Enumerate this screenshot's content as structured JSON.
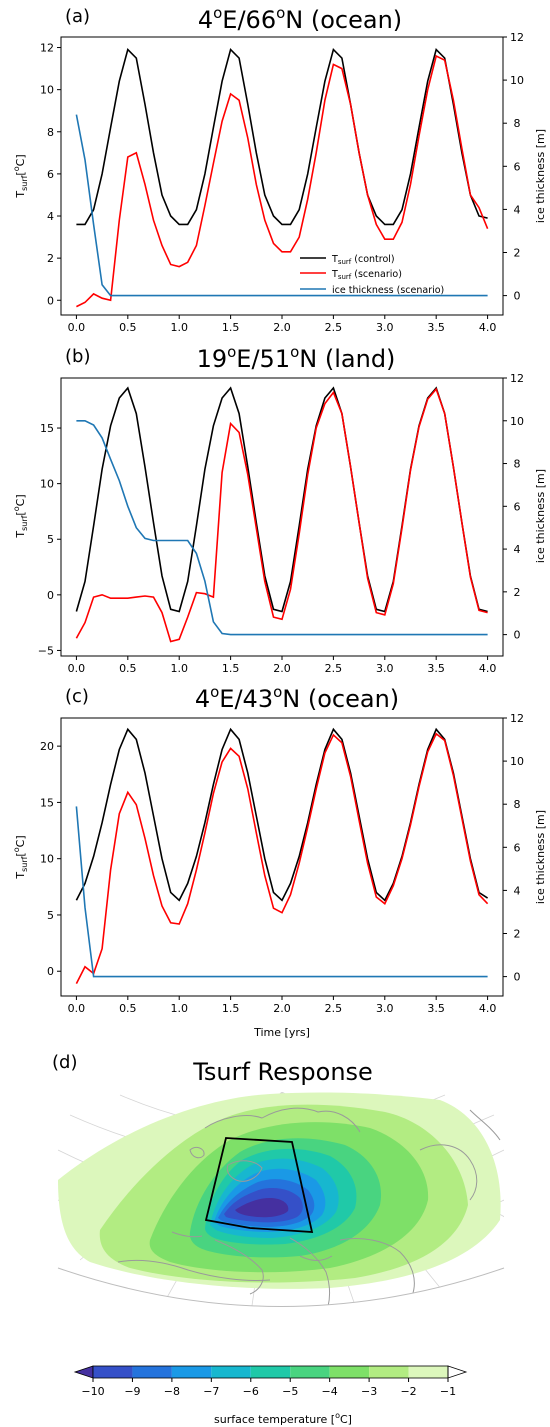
{
  "figure": {
    "title_d": "Tsurf Response"
  },
  "colors": {
    "control": "#000000",
    "scenario": "#ff0000",
    "ice": "#1f77b4"
  },
  "chart_data": [
    {
      "type": "line",
      "panel": "(a)",
      "title_main": "4",
      "title_sup1": "o",
      "title_mid": "E/66",
      "title_sup2": "o",
      "title_end": "N (ocean)",
      "xlabel": "",
      "ylabel_main": "T",
      "ylabel_sub": "surf",
      "ylabel_end": "[",
      "ylabel_sup": "o",
      "ylabel_close": "C]",
      "ylabel_right": "ice thickness [m]",
      "xlim": [
        -0.15,
        4.15
      ],
      "ylim": [
        -0.7,
        12.5
      ],
      "y2lim": [
        -0.9,
        12.0
      ],
      "xticks": [
        0.0,
        0.5,
        1.0,
        1.5,
        2.0,
        2.5,
        3.0,
        3.5,
        4.0
      ],
      "xtick_labels": [
        "0.0",
        "0.5",
        "1.0",
        "1.5",
        "2.0",
        "2.5",
        "3.0",
        "3.5",
        "4.0"
      ],
      "yticks": [
        0,
        2,
        4,
        6,
        8,
        10,
        12
      ],
      "ytick_labels": [
        "0",
        "2",
        "4",
        "6",
        "8",
        "10",
        "12"
      ],
      "y2ticks": [
        0,
        2,
        4,
        6,
        8,
        10,
        12
      ],
      "y2tick_labels": [
        "0",
        "2",
        "4",
        "6",
        "8",
        "10",
        "12"
      ],
      "legend": {
        "placement": "lower-right",
        "entries": [
          {
            "main": "T",
            "sub": "surf",
            "rest": " (control)",
            "key": "control"
          },
          {
            "main": "T",
            "sub": "surf",
            "rest": " (scenario)",
            "key": "scenario"
          },
          {
            "main": "ice thickness (scenario)",
            "sub": "",
            "rest": "",
            "key": "ice"
          }
        ]
      },
      "series": [
        {
          "key": "control",
          "axis": "left",
          "x": [
            0.0,
            0.083,
            0.167,
            0.25,
            0.333,
            0.417,
            0.5,
            0.583,
            0.667,
            0.75,
            0.833,
            0.917,
            1.0,
            1.083,
            1.167,
            1.25,
            1.333,
            1.417,
            1.5,
            1.583,
            1.667,
            1.75,
            1.833,
            1.917,
            2.0,
            2.083,
            2.167,
            2.25,
            2.333,
            2.417,
            2.5,
            2.583,
            2.667,
            2.75,
            2.833,
            2.917,
            3.0,
            3.083,
            3.167,
            3.25,
            3.333,
            3.417,
            3.5,
            3.583,
            3.667,
            3.75,
            3.833,
            3.917,
            4.0
          ],
          "y": [
            3.6,
            3.6,
            4.3,
            6.0,
            8.2,
            10.4,
            11.9,
            11.5,
            9.3,
            7.0,
            5.0,
            4.0,
            3.6,
            3.6,
            4.3,
            6.0,
            8.2,
            10.4,
            11.9,
            11.5,
            9.3,
            7.0,
            5.0,
            4.0,
            3.6,
            3.6,
            4.3,
            6.0,
            8.2,
            10.4,
            11.9,
            11.5,
            9.3,
            7.0,
            5.0,
            4.0,
            3.6,
            3.6,
            4.3,
            6.0,
            8.2,
            10.4,
            11.9,
            11.5,
            9.3,
            7.0,
            5.0,
            4.0,
            3.9
          ]
        },
        {
          "key": "scenario",
          "axis": "left",
          "x": [
            0.0,
            0.083,
            0.167,
            0.25,
            0.333,
            0.417,
            0.5,
            0.583,
            0.667,
            0.75,
            0.833,
            0.917,
            1.0,
            1.083,
            1.167,
            1.25,
            1.333,
            1.417,
            1.5,
            1.583,
            1.667,
            1.75,
            1.833,
            1.917,
            2.0,
            2.083,
            2.167,
            2.25,
            2.333,
            2.417,
            2.5,
            2.583,
            2.667,
            2.75,
            2.833,
            2.917,
            3.0,
            3.083,
            3.167,
            3.25,
            3.333,
            3.417,
            3.5,
            3.583,
            3.667,
            3.75,
            3.833,
            3.917,
            4.0
          ],
          "y": [
            -0.3,
            -0.1,
            0.3,
            0.1,
            0.0,
            3.8,
            6.8,
            7.0,
            5.5,
            3.8,
            2.6,
            1.7,
            1.6,
            1.8,
            2.6,
            4.5,
            6.5,
            8.5,
            9.8,
            9.5,
            7.7,
            5.5,
            3.8,
            2.7,
            2.3,
            2.3,
            3.0,
            4.8,
            7.0,
            9.5,
            11.2,
            11.0,
            9.3,
            7.0,
            5.0,
            3.6,
            2.9,
            2.9,
            3.7,
            5.5,
            7.8,
            10.0,
            11.6,
            11.4,
            9.5,
            7.2,
            5.0,
            4.4,
            3.4
          ]
        },
        {
          "key": "ice",
          "axis": "right",
          "x": [
            0.0,
            0.083,
            0.167,
            0.25,
            0.333,
            0.5,
            1.0,
            1.5,
            2.0,
            2.5,
            3.0,
            3.5,
            4.0
          ],
          "y": [
            8.4,
            6.3,
            3.3,
            0.5,
            0.0,
            0.0,
            0.0,
            0.0,
            0.0,
            0.0,
            0.0,
            0.0,
            0.0
          ]
        }
      ]
    },
    {
      "type": "line",
      "panel": "(b)",
      "title_main": "19",
      "title_sup1": "o",
      "title_mid": "E/51",
      "title_sup2": "o",
      "title_end": "N (land)",
      "xlabel": "",
      "ylabel_main": "T",
      "ylabel_sub": "surf",
      "ylabel_end": "[",
      "ylabel_sup": "o",
      "ylabel_close": "C]",
      "ylabel_right": "ice thickness [m]",
      "xlim": [
        -0.15,
        4.15
      ],
      "ylim": [
        -5.5,
        19.5
      ],
      "y2lim": [
        -1.0,
        12.0
      ],
      "xticks": [
        0.0,
        0.5,
        1.0,
        1.5,
        2.0,
        2.5,
        3.0,
        3.5,
        4.0
      ],
      "xtick_labels": [
        "0.0",
        "0.5",
        "1.0",
        "1.5",
        "2.0",
        "2.5",
        "3.0",
        "3.5",
        "4.0"
      ],
      "yticks": [
        -5,
        0,
        5,
        10,
        15
      ],
      "ytick_labels": [
        "−5",
        "0",
        "5",
        "10",
        "15"
      ],
      "y2ticks": [
        0,
        2,
        4,
        6,
        8,
        10,
        12
      ],
      "y2tick_labels": [
        "0",
        "2",
        "4",
        "6",
        "8",
        "10",
        "12"
      ],
      "series": [
        {
          "key": "control",
          "axis": "left",
          "x": [
            0.0,
            0.083,
            0.167,
            0.25,
            0.333,
            0.417,
            0.5,
            0.583,
            0.667,
            0.75,
            0.833,
            0.917,
            1.0,
            1.083,
            1.167,
            1.25,
            1.333,
            1.417,
            1.5,
            1.583,
            1.667,
            1.75,
            1.833,
            1.917,
            2.0,
            2.083,
            2.167,
            2.25,
            2.333,
            2.417,
            2.5,
            2.583,
            2.667,
            2.75,
            2.833,
            2.917,
            3.0,
            3.083,
            3.167,
            3.25,
            3.333,
            3.417,
            3.5,
            3.583,
            3.667,
            3.75,
            3.833,
            3.917,
            4.0
          ],
          "y": [
            -1.5,
            1.2,
            6.2,
            11.3,
            15.2,
            17.7,
            18.6,
            16.3,
            11.5,
            6.5,
            1.7,
            -1.3,
            -1.5,
            1.2,
            6.2,
            11.3,
            15.2,
            17.7,
            18.6,
            16.3,
            11.5,
            6.5,
            1.7,
            -1.3,
            -1.5,
            1.2,
            6.2,
            11.3,
            15.2,
            17.7,
            18.6,
            16.3,
            11.5,
            6.5,
            1.7,
            -1.3,
            -1.5,
            1.2,
            6.2,
            11.3,
            15.2,
            17.7,
            18.6,
            16.3,
            11.5,
            6.5,
            1.7,
            -1.3,
            -1.5
          ]
        },
        {
          "key": "scenario",
          "axis": "left",
          "x": [
            0.0,
            0.083,
            0.167,
            0.25,
            0.333,
            0.417,
            0.5,
            0.583,
            0.667,
            0.75,
            0.833,
            0.917,
            1.0,
            1.083,
            1.167,
            1.25,
            1.333,
            1.417,
            1.5,
            1.583,
            1.667,
            1.75,
            1.833,
            1.917,
            2.0,
            2.083,
            2.167,
            2.25,
            2.333,
            2.417,
            2.5,
            2.583,
            2.667,
            2.75,
            2.833,
            2.917,
            3.0,
            3.083,
            3.167,
            3.25,
            3.333,
            3.417,
            3.5,
            3.583,
            3.667,
            3.75,
            3.833,
            3.917,
            4.0
          ],
          "y": [
            -3.9,
            -2.5,
            -0.2,
            0.0,
            -0.3,
            -0.3,
            -0.3,
            -0.2,
            -0.1,
            -0.2,
            -1.6,
            -4.2,
            -4.0,
            -2.0,
            0.2,
            0.1,
            -0.2,
            11.0,
            15.4,
            14.6,
            10.8,
            6.0,
            1.2,
            -2.0,
            -2.2,
            0.5,
            5.5,
            10.8,
            15.0,
            17.2,
            18.2,
            16.3,
            11.5,
            6.5,
            1.5,
            -1.6,
            -1.8,
            1.0,
            6.0,
            11.2,
            15.1,
            17.6,
            18.5,
            16.3,
            11.5,
            6.5,
            1.6,
            -1.4,
            -1.6
          ]
        },
        {
          "key": "ice",
          "axis": "right",
          "x": [
            0.0,
            0.083,
            0.167,
            0.25,
            0.333,
            0.417,
            0.5,
            0.583,
            0.667,
            0.75,
            0.833,
            0.917,
            1.0,
            1.083,
            1.167,
            1.25,
            1.333,
            1.417,
            1.5,
            2.0,
            2.5,
            3.0,
            3.5,
            4.0
          ],
          "y": [
            10.0,
            10.0,
            9.8,
            9.2,
            8.2,
            7.2,
            6.0,
            5.0,
            4.5,
            4.4,
            4.4,
            4.4,
            4.4,
            4.4,
            3.8,
            2.5,
            0.6,
            0.05,
            0.0,
            0.0,
            0.0,
            0.0,
            0.0,
            0.0
          ]
        }
      ]
    },
    {
      "type": "line",
      "panel": "(c)",
      "title_main": "4",
      "title_sup1": "o",
      "title_mid": "E/43",
      "title_sup2": "o",
      "title_end": "N (ocean)",
      "xlabel": "Time [yrs]",
      "ylabel_main": "T",
      "ylabel_sub": "surf",
      "ylabel_end": "[",
      "ylabel_sup": "o",
      "ylabel_close": "C]",
      "ylabel_right": "ice thickness [m]",
      "xlim": [
        -0.15,
        4.15
      ],
      "ylim": [
        -2.2,
        22.5
      ],
      "y2lim": [
        -0.9,
        12.0
      ],
      "xticks": [
        0.0,
        0.5,
        1.0,
        1.5,
        2.0,
        2.5,
        3.0,
        3.5,
        4.0
      ],
      "xtick_labels": [
        "0.0",
        "0.5",
        "1.0",
        "1.5",
        "2.0",
        "2.5",
        "3.0",
        "3.5",
        "4.0"
      ],
      "yticks": [
        0,
        5,
        10,
        15,
        20
      ],
      "ytick_labels": [
        "0",
        "5",
        "10",
        "15",
        "20"
      ],
      "y2ticks": [
        0,
        2,
        4,
        6,
        8,
        10,
        12
      ],
      "y2tick_labels": [
        "0",
        "2",
        "4",
        "6",
        "8",
        "10",
        "12"
      ],
      "series": [
        {
          "key": "control",
          "axis": "left",
          "x": [
            0.0,
            0.083,
            0.167,
            0.25,
            0.333,
            0.417,
            0.5,
            0.583,
            0.667,
            0.75,
            0.833,
            0.917,
            1.0,
            1.083,
            1.167,
            1.25,
            1.333,
            1.417,
            1.5,
            1.583,
            1.667,
            1.75,
            1.833,
            1.917,
            2.0,
            2.083,
            2.167,
            2.25,
            2.333,
            2.417,
            2.5,
            2.583,
            2.667,
            2.75,
            2.833,
            2.917,
            3.0,
            3.083,
            3.167,
            3.25,
            3.333,
            3.417,
            3.5,
            3.583,
            3.667,
            3.75,
            3.833,
            3.917,
            4.0
          ],
          "y": [
            6.3,
            7.8,
            10.2,
            13.2,
            16.6,
            19.7,
            21.5,
            20.6,
            17.6,
            13.8,
            10.0,
            7.0,
            6.3,
            7.8,
            10.2,
            13.2,
            16.6,
            19.7,
            21.5,
            20.6,
            17.6,
            13.8,
            10.0,
            7.0,
            6.3,
            7.8,
            10.2,
            13.2,
            16.6,
            19.7,
            21.5,
            20.6,
            17.6,
            13.8,
            10.0,
            7.0,
            6.3,
            7.8,
            10.2,
            13.2,
            16.6,
            19.7,
            21.5,
            20.6,
            17.6,
            13.8,
            10.0,
            7.0,
            6.5
          ]
        },
        {
          "key": "scenario",
          "axis": "left",
          "x": [
            0.0,
            0.083,
            0.167,
            0.25,
            0.333,
            0.417,
            0.5,
            0.583,
            0.667,
            0.75,
            0.833,
            0.917,
            1.0,
            1.083,
            1.167,
            1.25,
            1.333,
            1.417,
            1.5,
            1.583,
            1.667,
            1.75,
            1.833,
            1.917,
            2.0,
            2.083,
            2.167,
            2.25,
            2.333,
            2.417,
            2.5,
            2.583,
            2.667,
            2.75,
            2.833,
            2.917,
            3.0,
            3.083,
            3.167,
            3.25,
            3.333,
            3.417,
            3.5,
            3.583,
            3.667,
            3.75,
            3.833,
            3.917,
            4.0
          ],
          "y": [
            -1.1,
            0.4,
            -0.2,
            2.0,
            9.0,
            14.0,
            15.9,
            14.8,
            11.8,
            8.5,
            5.8,
            4.3,
            4.2,
            6.0,
            9.0,
            12.3,
            15.8,
            18.6,
            19.8,
            19.1,
            16.2,
            12.3,
            8.5,
            5.6,
            5.2,
            6.8,
            9.6,
            12.8,
            16.2,
            19.4,
            21.0,
            20.3,
            17.3,
            13.4,
            9.6,
            6.6,
            6.0,
            7.6,
            10.0,
            13.0,
            16.4,
            19.5,
            21.1,
            20.5,
            17.4,
            13.6,
            9.8,
            6.8,
            6.0
          ]
        },
        {
          "key": "ice",
          "axis": "right",
          "x": [
            0.0,
            0.083,
            0.167,
            0.25,
            0.5,
            1.0,
            1.5,
            2.0,
            2.5,
            3.0,
            3.5,
            4.0
          ],
          "y": [
            7.9,
            3.2,
            0.0,
            0.0,
            0.0,
            0.0,
            0.0,
            0.0,
            0.0,
            0.0,
            0.0,
            0.0
          ]
        }
      ]
    },
    {
      "type": "heatmap",
      "panel": "(d)",
      "title": "Tsurf Response",
      "colorbar": {
        "label_main": "surface temperature [",
        "label_sup": "o",
        "label_end": "C]",
        "levels": [
          -10,
          -9,
          -8,
          -7,
          -6,
          -5,
          -4,
          -3,
          -2,
          -1
        ],
        "tick_labels": [
          "−10",
          "−9",
          "−8",
          "−7",
          "−6",
          "−5",
          "−4",
          "−3",
          "−2",
          "−1"
        ],
        "colors": [
          "#4530a0",
          "#3550c8",
          "#2473dc",
          "#1a99e6",
          "#17b7cf",
          "#20c9a8",
          "#49d480",
          "#7ee068",
          "#b2ec82",
          "#dcf7bc"
        ],
        "extend": "both"
      },
      "contour_levels": [
        {
          "value": -1,
          "color": "#dcf7bc"
        },
        {
          "value": -2,
          "color": "#b2ec82"
        },
        {
          "value": -3,
          "color": "#7ee068"
        },
        {
          "value": -4,
          "color": "#49d480"
        },
        {
          "value": -5,
          "color": "#20c9a8"
        },
        {
          "value": -6,
          "color": "#17b7cf"
        },
        {
          "value": -7,
          "color": "#1a99e6"
        },
        {
          "value": -8,
          "color": "#2473dc"
        },
        {
          "value": -9,
          "color": "#3550c8"
        },
        {
          "value": -10,
          "color": "#4530a0"
        }
      ]
    }
  ]
}
